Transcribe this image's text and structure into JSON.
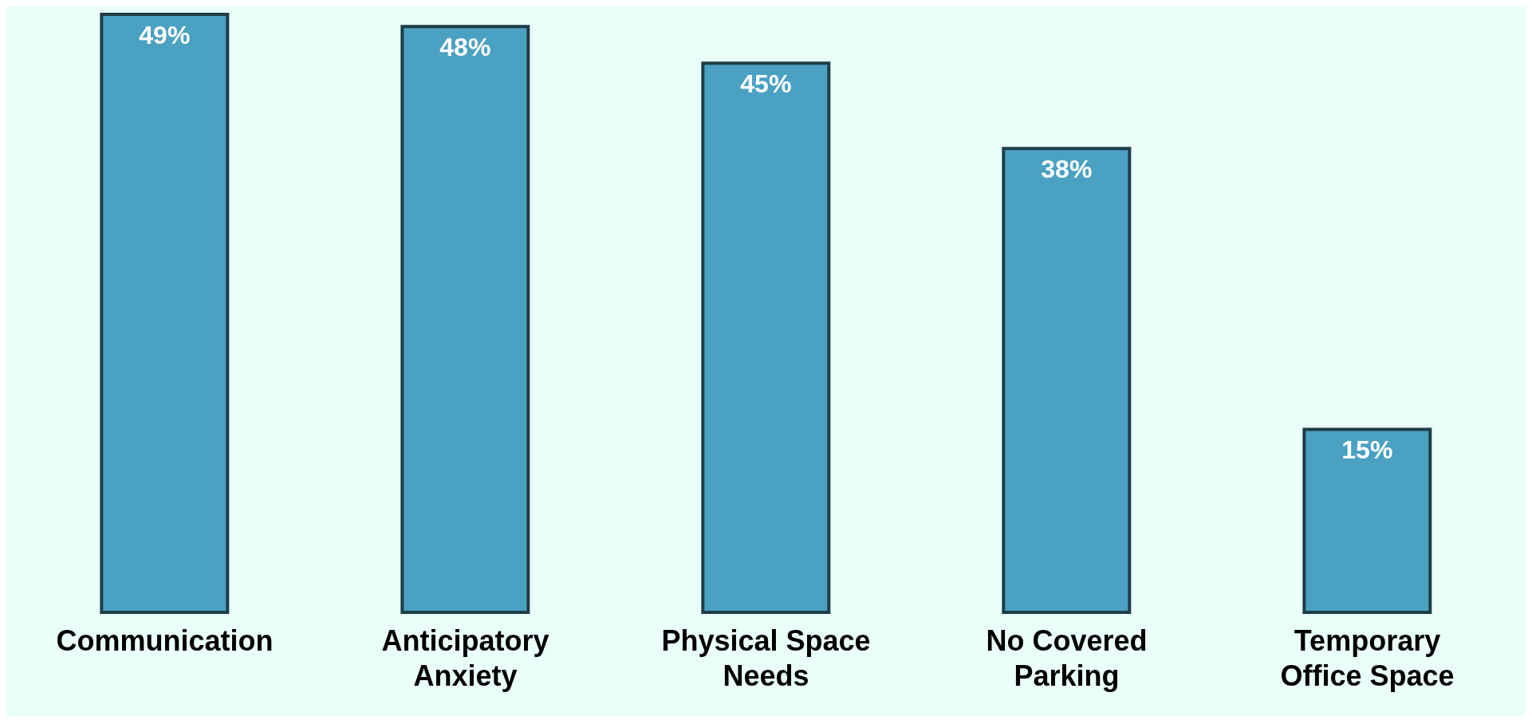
{
  "chart_data": {
    "type": "bar",
    "categories": [
      "Communication",
      "Anticipatory Anxiety",
      "Physical Space Needs",
      "No Covered Parking",
      "Temporary Office Space"
    ],
    "values": [
      49,
      48,
      45,
      38,
      15
    ],
    "value_labels": [
      "49%",
      "48%",
      "45%",
      "38%",
      "15%"
    ],
    "color": "#4aa1c2",
    "grid": false,
    "legend": false
  }
}
